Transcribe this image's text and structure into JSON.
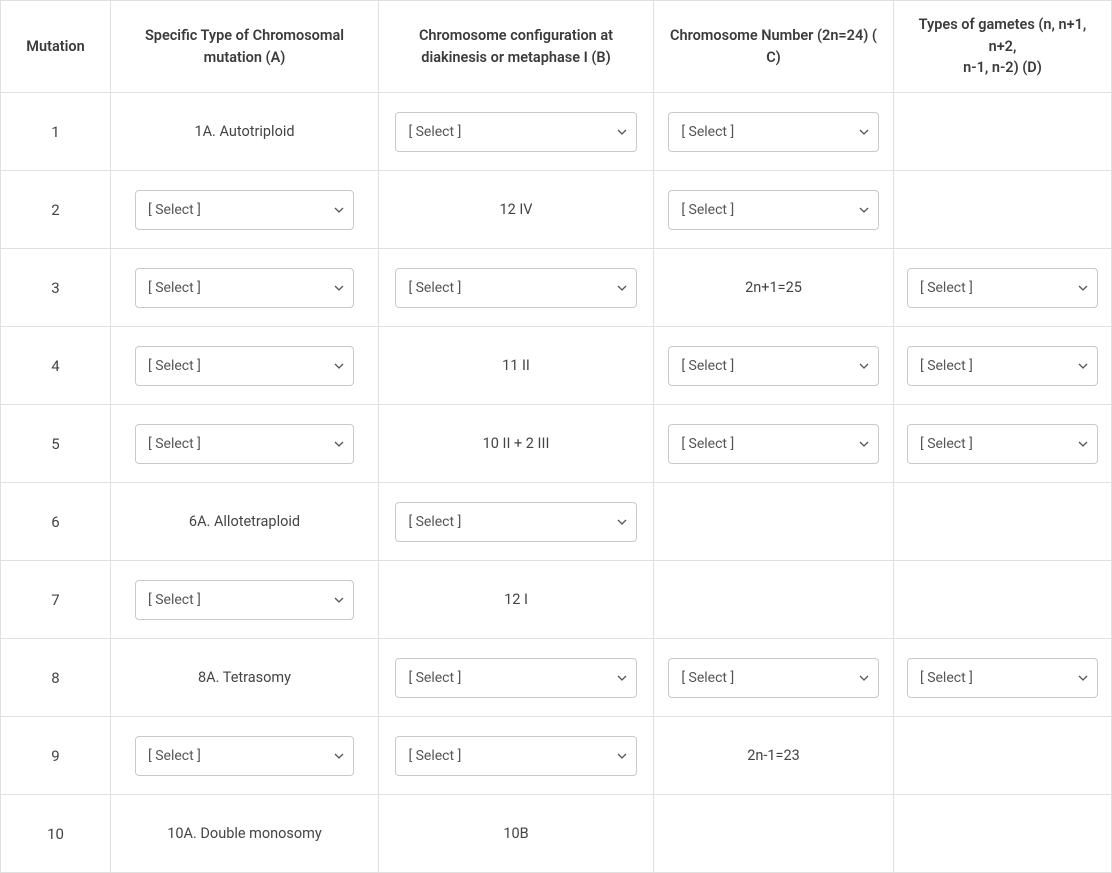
{
  "select_placeholder": "[ Select ]",
  "columns": {
    "mutation": "Mutation",
    "a": "Specific Type of Chromosomal mutation (A)",
    "b": "Chromosome configuration at diakinesis or metaphase I (B)",
    "c": "Chromosome Number (2n=24) (C)",
    "d": "Types of gametes (n, n+1, n+2, n-1, n-2) (D)"
  },
  "header_parts": {
    "a_line1": "Specific Type of Chromosomal",
    "a_line2": "mutation (A)",
    "b_line1": "Chromosome configuration at",
    "b_line2": "diakinesis or metaphase I (B)",
    "c_line1": "Chromosome Number (2n=24) (",
    "c_line2": "C)",
    "d_line1": "Types of gametes (n, n+1, n+2,",
    "d_line2": "n-1, n-2) (D)"
  },
  "rows": [
    {
      "num": "1",
      "a": {
        "type": "text",
        "value": "1A. Autotriploid"
      },
      "b": {
        "type": "select"
      },
      "c": {
        "type": "select"
      },
      "d": {
        "type": "empty"
      }
    },
    {
      "num": "2",
      "a": {
        "type": "select"
      },
      "b": {
        "type": "text",
        "value": "12 IV"
      },
      "c": {
        "type": "select"
      },
      "d": {
        "type": "empty"
      }
    },
    {
      "num": "3",
      "a": {
        "type": "select"
      },
      "b": {
        "type": "select"
      },
      "c": {
        "type": "text",
        "value": "2n+1=25"
      },
      "d": {
        "type": "select"
      }
    },
    {
      "num": "4",
      "a": {
        "type": "select"
      },
      "b": {
        "type": "text",
        "value": "11 II"
      },
      "c": {
        "type": "select"
      },
      "d": {
        "type": "select"
      }
    },
    {
      "num": "5",
      "a": {
        "type": "select"
      },
      "b": {
        "type": "text",
        "value": "10 II + 2 III"
      },
      "c": {
        "type": "select"
      },
      "d": {
        "type": "select"
      }
    },
    {
      "num": "6",
      "a": {
        "type": "text",
        "value": "6A. Allotetraploid"
      },
      "b": {
        "type": "select"
      },
      "c": {
        "type": "empty"
      },
      "d": {
        "type": "empty"
      }
    },
    {
      "num": "7",
      "a": {
        "type": "select"
      },
      "b": {
        "type": "text",
        "value": "12 I"
      },
      "c": {
        "type": "empty"
      },
      "d": {
        "type": "empty"
      }
    },
    {
      "num": "8",
      "a": {
        "type": "text",
        "value": "8A. Tetrasomy"
      },
      "b": {
        "type": "select"
      },
      "c": {
        "type": "select"
      },
      "d": {
        "type": "select"
      }
    },
    {
      "num": "9",
      "a": {
        "type": "select"
      },
      "b": {
        "type": "select"
      },
      "c": {
        "type": "text",
        "value": "2n-1=23"
      },
      "d": {
        "type": "empty"
      }
    },
    {
      "num": "10",
      "a": {
        "type": "text",
        "value": "10A. Double monosomy"
      },
      "b": {
        "type": "text",
        "value": "10B"
      },
      "c": {
        "type": "empty"
      },
      "d": {
        "type": "empty"
      }
    }
  ],
  "colors": {
    "border": "#e0e0e0",
    "select_border": "#c9c9c9",
    "text": "#444444",
    "background": "#ffffff"
  }
}
